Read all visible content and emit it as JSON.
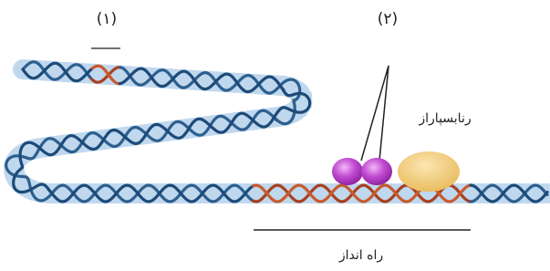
{
  "labels": {
    "site_1": "(۱)",
    "site_2": "(۲)",
    "rna_polymerase": "رنابسپاراز",
    "promoter": "راه انداز"
  }
}
